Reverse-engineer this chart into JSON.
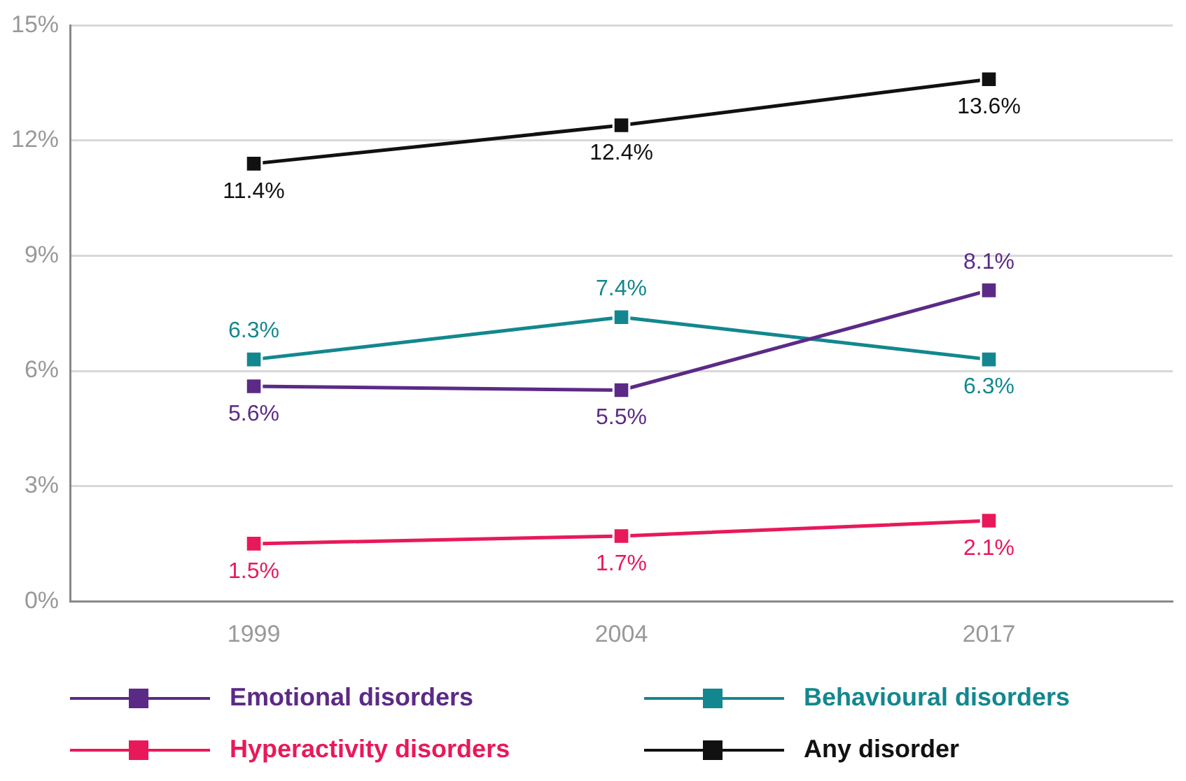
{
  "chart_data": {
    "type": "line",
    "categories": [
      "1999",
      "2004",
      "2017"
    ],
    "series": [
      {
        "name": "Emotional disorders",
        "color": "#5b2a86",
        "values": [
          5.6,
          5.5,
          8.1
        ],
        "value_labels": [
          "5.6%",
          "5.5%",
          "8.1%"
        ]
      },
      {
        "name": "Behavioural disorders",
        "color": "#13878f",
        "values": [
          6.3,
          7.4,
          6.3
        ],
        "value_labels": [
          "6.3%",
          "7.4%",
          "6.3%"
        ]
      },
      {
        "name": "Hyperactivity disorders",
        "color": "#e8195a",
        "values": [
          1.5,
          1.7,
          2.1
        ],
        "value_labels": [
          "1.5%",
          "1.7%",
          "2.1%"
        ]
      },
      {
        "name": "Any disorder",
        "color": "#111111",
        "values": [
          11.4,
          12.4,
          13.6
        ],
        "value_labels": [
          "11.4%",
          "12.4%",
          "13.6%"
        ]
      }
    ],
    "ylim": [
      0,
      15
    ],
    "yticks": [
      {
        "value": 0,
        "label": "0%"
      },
      {
        "value": 3,
        "label": "3%"
      },
      {
        "value": 6,
        "label": "6%"
      },
      {
        "value": 9,
        "label": "9%"
      },
      {
        "value": 12,
        "label": "12%"
      },
      {
        "value": 15,
        "label": "15%"
      }
    ],
    "grid": "y",
    "legend": "bottom",
    "marker": "square",
    "line_style": "solid"
  }
}
